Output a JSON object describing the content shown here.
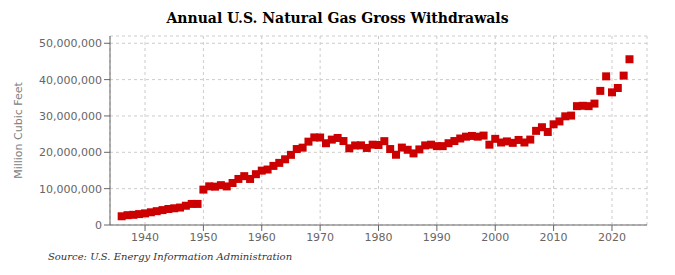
{
  "chart_data": {
    "type": "scatter",
    "title": "Annual U.S. Natural Gas Gross Withdrawals",
    "y_label": "Million Cubic Feet",
    "annotations": [
      "Source: U.S. Energy Information Administration"
    ],
    "color": "#cc0000",
    "marker": "square",
    "grid": true,
    "xlim": [
      1934,
      2026
    ],
    "ylim": [
      0,
      52000000
    ],
    "xticks": [
      1940,
      1950,
      1960,
      1970,
      1980,
      1990,
      2000,
      2010,
      2020
    ],
    "yticks": [
      0,
      {
        "value": 10000000,
        "label": "10,000,000"
      },
      {
        "value": 20000000,
        "label": "20,000,000"
      },
      {
        "value": 30000000,
        "label": "30,000,000"
      },
      {
        "value": 40000000,
        "label": "40,000,000"
      },
      {
        "value": 50000000,
        "label": "50,000,000"
      }
    ],
    "x": [
      1936,
      1937,
      1938,
      1939,
      1940,
      1941,
      1942,
      1943,
      1944,
      1945,
      1946,
      1947,
      1948,
      1949,
      1950,
      1951,
      1952,
      1953,
      1954,
      1955,
      1956,
      1957,
      1958,
      1959,
      1960,
      1961,
      1962,
      1963,
      1964,
      1965,
      1966,
      1967,
      1968,
      1969,
      1970,
      1971,
      1972,
      1973,
      1974,
      1975,
      1976,
      1977,
      1978,
      1979,
      1980,
      1981,
      1982,
      1983,
      1984,
      1985,
      1986,
      1987,
      1988,
      1989,
      1990,
      1991,
      1992,
      1993,
      1994,
      1995,
      1996,
      1997,
      1998,
      1999,
      2000,
      2001,
      2002,
      2003,
      2004,
      2005,
      2006,
      2007,
      2008,
      2009,
      2010,
      2011,
      2012,
      2013,
      2014,
      2015,
      2016,
      2017,
      2018,
      2019,
      2020,
      2021,
      2022,
      2023
    ],
    "values": [
      2400000,
      2700000,
      2800000,
      3000000,
      3200000,
      3500000,
      3800000,
      4100000,
      4400000,
      4600000,
      4800000,
      5300000,
      5800000,
      5800000,
      9740000,
      10640000,
      10550000,
      10960000,
      10610000,
      11560000,
      12670000,
      13440000,
      12670000,
      13980000,
      14960000,
      15260000,
      16260000,
      17090000,
      18080000,
      19300000,
      20900000,
      21280000,
      22930000,
      24099000,
      24070000,
      22493000,
      23491000,
      23946000,
      23101000,
      21106000,
      21890000,
      21916000,
      21200000,
      22100000,
      22010000,
      23070000,
      20900000,
      19330000,
      21300000,
      20700000,
      19700000,
      20800000,
      21900000,
      22100000,
      21700000,
      21700000,
      22500000,
      23100000,
      23800000,
      24300000,
      24500000,
      24300000,
      24600000,
      22100000,
      23700000,
      22700000,
      23000000,
      22600000,
      23400000,
      22700000,
      23500000,
      25900000,
      26900000,
      25600000,
      27700000,
      28500000,
      29900000,
      30100000,
      32700000,
      32800000,
      32700000,
      33400000,
      36900000,
      40900000,
      36500000,
      37700000,
      41100000,
      45600000
    ]
  }
}
